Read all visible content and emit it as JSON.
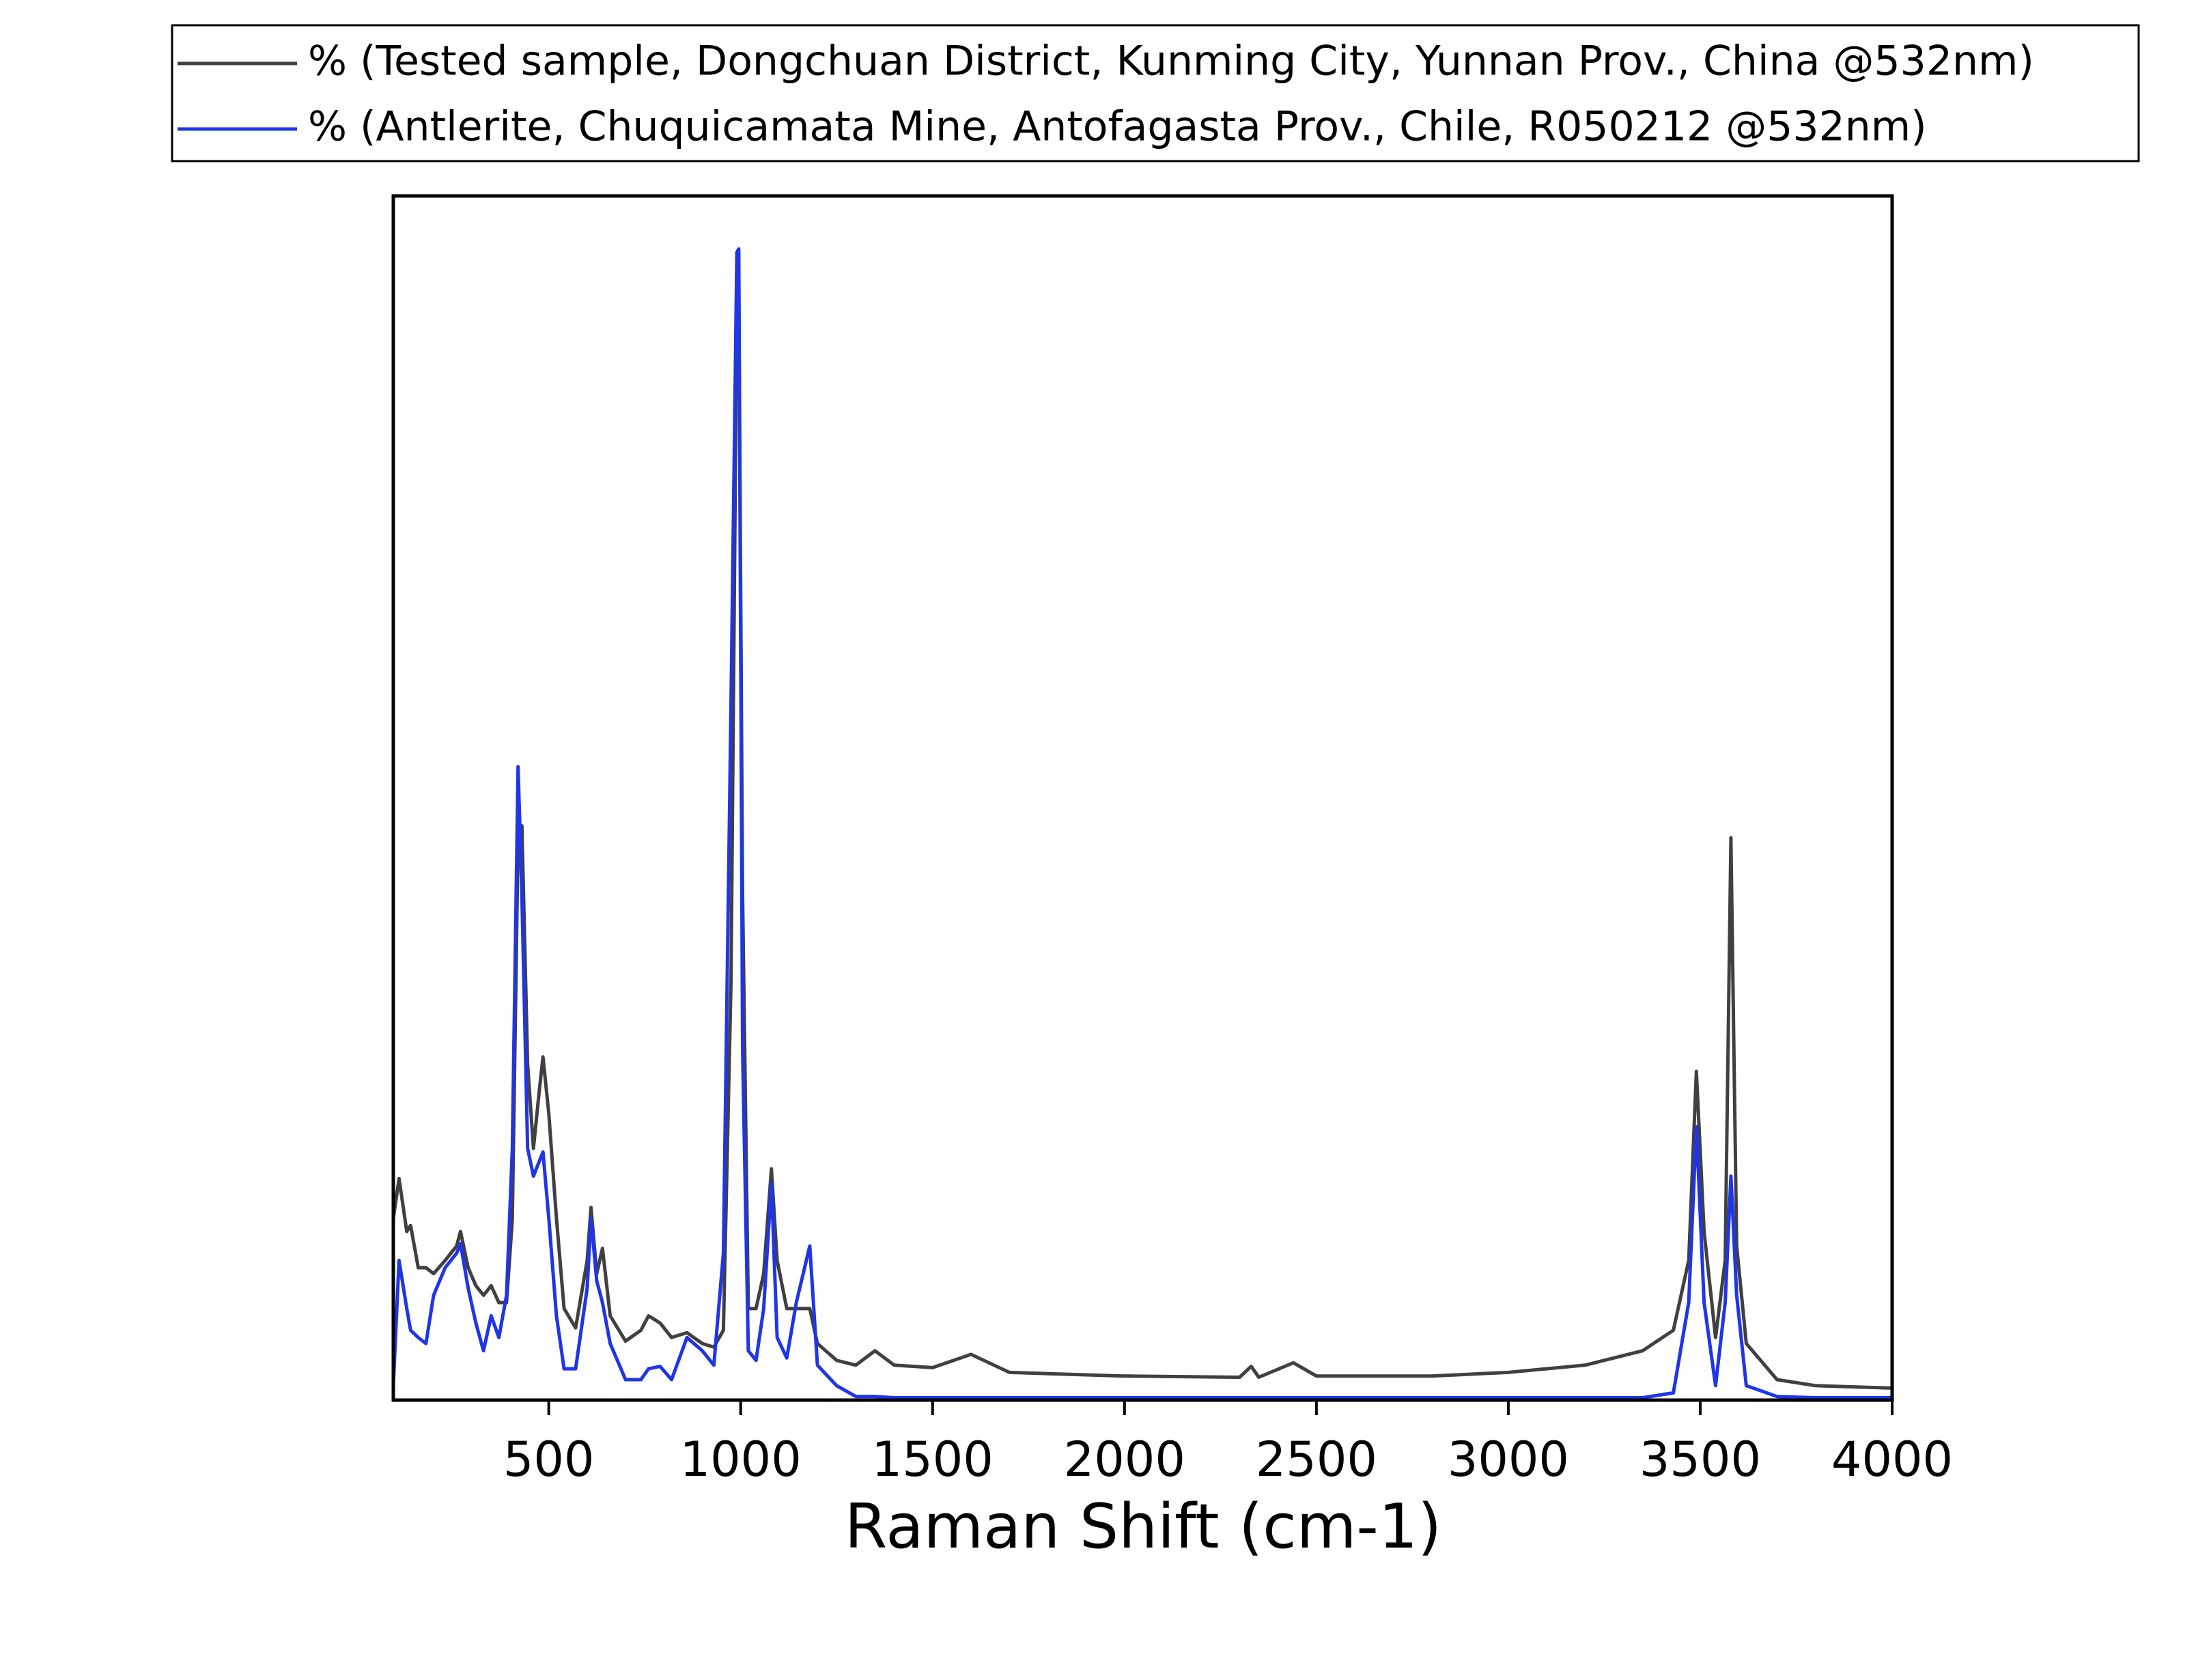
{
  "chart_data": {
    "type": "line",
    "x_label": "Raman Shift (cm-1)",
    "x": [
      95,
      110,
      130,
      140,
      160,
      180,
      200,
      230,
      260,
      270,
      290,
      310,
      330,
      350,
      370,
      390,
      405,
      420,
      430,
      445,
      460,
      475,
      485,
      500,
      520,
      540,
      570,
      600,
      610,
      625,
      640,
      660,
      700,
      740,
      760,
      790,
      820,
      860,
      900,
      930,
      955,
      975,
      990,
      995,
      1005,
      1020,
      1040,
      1060,
      1080,
      1095,
      1120,
      1145,
      1180,
      1200,
      1250,
      1300,
      1350,
      1400,
      1500,
      1600,
      1700,
      1800,
      2000,
      2300,
      2330,
      2350,
      2440,
      2500,
      2800,
      3000,
      3200,
      3350,
      3430,
      3470,
      3490,
      3510,
      3540,
      3565,
      3580,
      3595,
      3620,
      3700,
      3800,
      4000
    ],
    "series": [
      {
        "name": "% (Tested sample, Dongchuan District, Kunming City, Yunnan Prov., China @532nm)",
        "color": "#404040",
        "values": [
          15.1,
          18.4,
          14,
          14.5,
          11,
          11,
          10.5,
          11.6,
          12.8,
          14,
          11,
          9.5,
          8.7,
          9.5,
          8.1,
          8.1,
          15,
          46.5,
          47.7,
          27.9,
          20.9,
          25.6,
          28.5,
          23.8,
          15.1,
          7.6,
          6,
          11.6,
          16,
          10.5,
          12.6,
          7,
          4.9,
          5.8,
          7,
          6.4,
          5.2,
          5.6,
          4.7,
          4.4,
          5.8,
          34.9,
          91.3,
          93,
          41.9,
          7.6,
          7.6,
          10.5,
          19.2,
          11.6,
          7.6,
          7.6,
          7.6,
          4.7,
          3.3,
          2.9,
          4.1,
          2.9,
          2.7,
          3.8,
          2.3,
          2.2,
          2,
          1.9,
          2.8,
          1.9,
          3.1,
          2,
          2,
          2.3,
          2.9,
          4.1,
          5.8,
          11.6,
          27.3,
          14,
          5.2,
          11.6,
          46.7,
          12.8,
          4.7,
          1.7,
          1.2,
          1
        ]
      },
      {
        "name": "% (Antlerite, Chuquicamata Mine, Antofagasta Prov., Chile, R050212 @532nm)",
        "color": "#1f35e8",
        "values": [
          1.2,
          11.6,
          7.6,
          5.8,
          5.2,
          4.7,
          8.7,
          11,
          12.2,
          13,
          9.3,
          6.4,
          4.1,
          7,
          5.2,
          8.7,
          20.9,
          52.6,
          41.9,
          20.9,
          18.6,
          19.8,
          20.6,
          15.1,
          7,
          2.6,
          2.6,
          9.3,
          15.1,
          9.9,
          8.1,
          4.7,
          1.7,
          1.7,
          2.6,
          2.8,
          1.7,
          5.2,
          4.1,
          2.9,
          12.2,
          58.1,
          95.3,
          95.6,
          29.1,
          4.1,
          3.3,
          7.6,
          18,
          5.2,
          3.5,
          8.1,
          12.8,
          2.9,
          1.2,
          0.3,
          0.3,
          0.2,
          0.2,
          0.2,
          0.2,
          0.2,
          0.2,
          0.2,
          0.2,
          0.2,
          0.2,
          0.2,
          0.2,
          0.2,
          0.2,
          0.2,
          0.6,
          8.1,
          22.7,
          8.1,
          1.2,
          8.1,
          18.6,
          8.7,
          1.2,
          0.3,
          0.2,
          0.2
        ]
      }
    ],
    "xlim": [
      95,
      4000
    ],
    "ylim": [
      0,
      100
    ],
    "xticks": [
      500,
      1000,
      1500,
      2000,
      2500,
      3000,
      3500,
      4000
    ],
    "legend": "top"
  }
}
